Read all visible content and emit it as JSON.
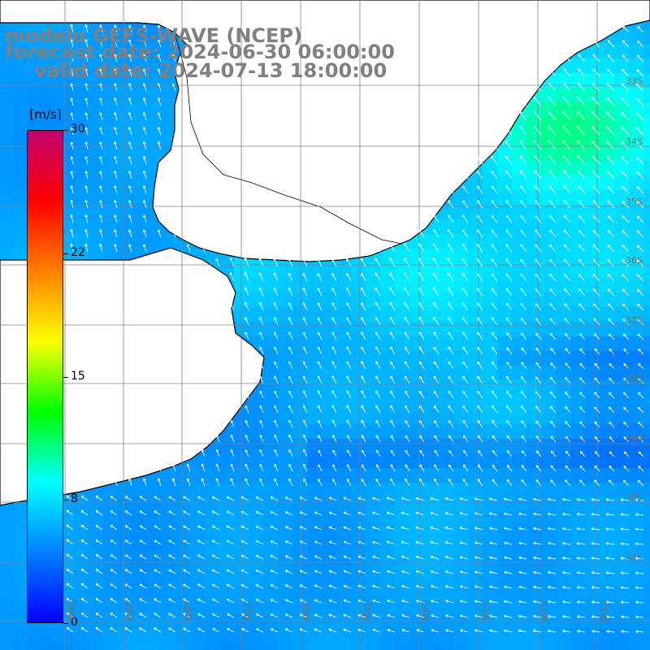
{
  "title": {
    "model": "modelo GEFS-WAVE (NCEP)",
    "forecast": "forecast date: 2024-06-30 06:00:00",
    "valid": "valid date: 2024-07-13 18:00:00"
  },
  "colorbar": {
    "unit": "[m/s]",
    "min": 0,
    "max": 30,
    "ticks": [
      "30",
      "22",
      "15",
      "8",
      "0"
    ],
    "tick_values": [
      30,
      22.5,
      15,
      7.5,
      0
    ],
    "colors": [
      "#0000ff",
      "#0080ff",
      "#00ffff",
      "#00ff00",
      "#ffff00",
      "#ff8000",
      "#ff0000",
      "#c00070"
    ]
  },
  "map": {
    "land_color": "#ffffff",
    "coast_color": "#000000",
    "grid_color": "#808080",
    "arrow_color": "#ffffff",
    "lon_labels": [
      "60W",
      "59W",
      "58W",
      "57W",
      "56W",
      "55W",
      "54W",
      "53W",
      "52W",
      "51W"
    ],
    "lat_labels": [
      "33S",
      "34S",
      "35S",
      "36S",
      "37S",
      "38S",
      "39S",
      "40S",
      "41S"
    ],
    "speed_range_ms": [
      3,
      12
    ]
  }
}
